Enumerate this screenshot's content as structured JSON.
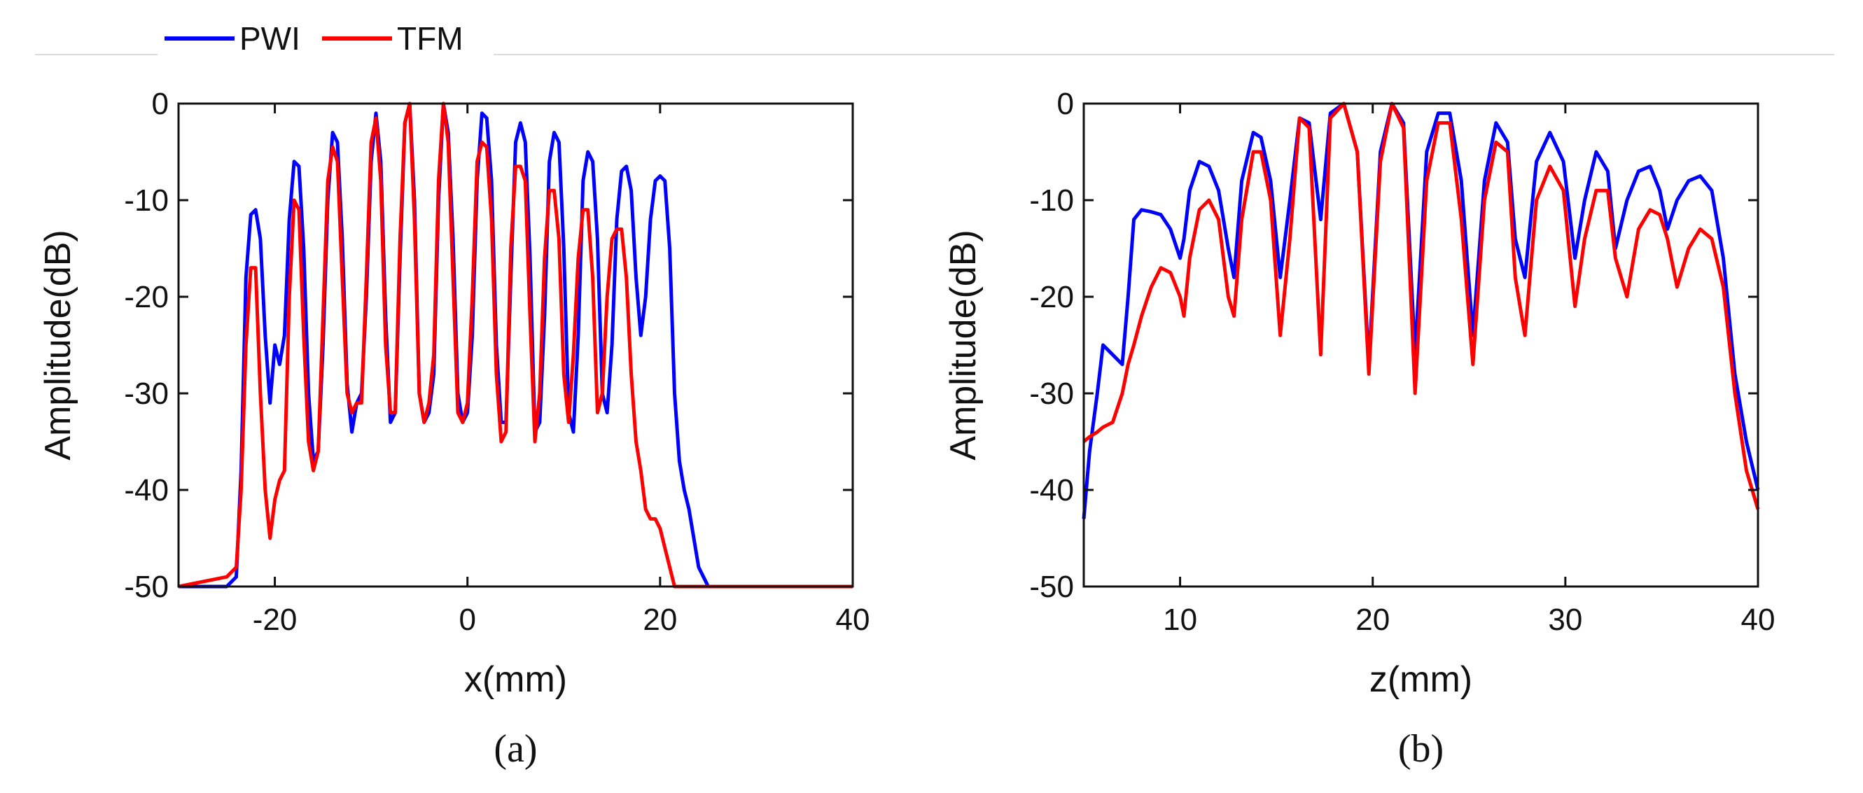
{
  "legend": {
    "entries": [
      {
        "label": "PWI",
        "color": "#0000ff"
      },
      {
        "label": "TFM",
        "color": "#ff0000"
      }
    ]
  },
  "chart_data": [
    {
      "type": "line",
      "caption": "(a)",
      "xlabel": "x(mm)",
      "ylabel": "Amplitude(dB)",
      "xlim": [
        -30,
        40
      ],
      "ylim": [
        -50,
        0
      ],
      "xticks": [
        -20,
        0,
        20,
        40
      ],
      "xtick_labels": [
        "-20",
        "0",
        "20",
        "40"
      ],
      "yticks": [
        0,
        -10,
        -20,
        -30,
        -40,
        -50
      ],
      "ytick_labels": [
        "0",
        "-10",
        "-20",
        "-30",
        "-40",
        "-50"
      ],
      "grid": false,
      "series": [
        {
          "name": "PWI",
          "color": "#0000ff",
          "x": [
            -30,
            -25,
            -24,
            -23.5,
            -23,
            -22.5,
            -22,
            -21.5,
            -21,
            -20.5,
            -20,
            -19.5,
            -19,
            -18.5,
            -18,
            -17.5,
            -17,
            -16.5,
            -16,
            -15.5,
            -15,
            -14.5,
            -14,
            -13.5,
            -13,
            -12.5,
            -12,
            -11.5,
            -11,
            -10.5,
            -10,
            -9.5,
            -9,
            -8.5,
            -8,
            -7.5,
            -7,
            -6.5,
            -6,
            -5.5,
            -5,
            -4.5,
            -4,
            -3.5,
            -3,
            -2.5,
            -2,
            -1.5,
            -1,
            -0.5,
            0,
            0.5,
            1,
            1.5,
            2,
            2.5,
            3,
            3.5,
            4,
            4.5,
            5,
            5.5,
            6,
            6.5,
            7,
            7.5,
            8,
            8.5,
            9,
            9.5,
            10,
            10.5,
            11,
            11.5,
            12,
            12.5,
            13,
            13.5,
            14,
            14.5,
            15,
            15.5,
            16,
            16.5,
            17,
            17.5,
            18,
            18.5,
            19,
            19.5,
            20,
            20.5,
            21,
            21.5,
            22,
            22.5,
            23,
            23.5,
            24,
            24.5,
            25,
            25.5,
            26,
            26.5,
            27,
            27.5,
            28,
            28.5,
            29,
            29.5,
            30,
            30.5,
            31,
            31.5,
            32,
            32.5,
            33,
            33.5,
            34,
            34.5,
            35,
            35.5,
            36,
            36.5,
            37,
            37.5,
            38,
            38.5,
            39,
            39.5,
            40
          ],
          "y": [
            -50,
            -50,
            -49,
            -38,
            -18,
            -11.5,
            -11,
            -14,
            -24,
            -31,
            -25,
            -27,
            -24,
            -12,
            -6,
            -6.5,
            -15,
            -30,
            -37,
            -36,
            -25,
            -10,
            -3,
            -4,
            -14,
            -29,
            -34,
            -31,
            -30,
            -20,
            -6,
            -1,
            -6,
            -22,
            -33,
            -32,
            -16,
            -2,
            0,
            -10,
            -30,
            -33,
            -32,
            -28,
            -10,
            0,
            -3,
            -14,
            -30,
            -33,
            -32,
            -24,
            -8,
            -1,
            -1.5,
            -8,
            -25,
            -33,
            -33,
            -18,
            -4,
            -2,
            -4,
            -16,
            -34,
            -33,
            -22,
            -6,
            -3,
            -4,
            -15,
            -32,
            -34,
            -24,
            -8,
            -5,
            -6,
            -14,
            -30,
            -32,
            -25,
            -12,
            -7,
            -6.5,
            -9,
            -18,
            -24,
            -20,
            -12,
            -8,
            -7.5,
            -8,
            -15,
            -30,
            -37,
            -40,
            -42,
            -45,
            -48,
            -49,
            -50,
            -50,
            -50,
            -50,
            -50,
            -50,
            -50,
            -50,
            -50,
            -50,
            -50,
            -50,
            -50,
            -50,
            -50,
            -50,
            -50,
            -50,
            -50,
            -50,
            -50,
            -50,
            -50,
            -50,
            -50,
            -50,
            -50,
            -50,
            -50,
            -50,
            -50
          ]
        },
        {
          "name": "TFM",
          "color": "#ff0000",
          "x": [
            -30,
            -25,
            -24,
            -23.5,
            -23,
            -22.5,
            -22,
            -21.5,
            -21,
            -20.5,
            -20,
            -19.5,
            -19,
            -18.5,
            -18,
            -17.5,
            -17,
            -16.5,
            -16,
            -15.5,
            -15,
            -14.5,
            -14,
            -13.5,
            -13,
            -12.5,
            -12,
            -11.5,
            -11,
            -10.5,
            -10,
            -9.5,
            -9,
            -8.5,
            -8,
            -7.5,
            -7,
            -6.5,
            -6,
            -5.5,
            -5,
            -4.5,
            -4,
            -3.5,
            -3,
            -2.5,
            -2,
            -1.5,
            -1,
            -0.5,
            0,
            0.5,
            1,
            1.5,
            2,
            2.5,
            3,
            3.5,
            4,
            4.5,
            5,
            5.5,
            6,
            6.5,
            7,
            7.5,
            8,
            8.5,
            9,
            9.5,
            10,
            10.5,
            11,
            11.5,
            12,
            12.5,
            13,
            13.5,
            14,
            14.5,
            15,
            15.5,
            16,
            16.5,
            17,
            17.5,
            18,
            18.5,
            19,
            19.5,
            20,
            20.5,
            21,
            21.5,
            22,
            22.5,
            23,
            23.5,
            24,
            24.5,
            25,
            25.5,
            26,
            26.5,
            27,
            27.5,
            28,
            28.5,
            29,
            29.5,
            30,
            30.5,
            31,
            31.5,
            32,
            32.5,
            33,
            33.5,
            34,
            34.5,
            35,
            35.5,
            36,
            36.5,
            37,
            37.5,
            38,
            38.5,
            39,
            39.5,
            40
          ],
          "y": [
            -50,
            -49,
            -48,
            -40,
            -25,
            -17,
            -17,
            -30,
            -40,
            -45,
            -41,
            -39,
            -38,
            -20,
            -10,
            -11,
            -24,
            -35,
            -38,
            -36,
            -22,
            -8,
            -4.5,
            -6,
            -18,
            -30,
            -32,
            -31,
            -31,
            -18,
            -4,
            -1.5,
            -8,
            -25,
            -32,
            -32,
            -14,
            -2,
            0,
            -12,
            -30,
            -33,
            -31,
            -26,
            -8,
            0,
            -4,
            -18,
            -32,
            -33,
            -31,
            -20,
            -6,
            -4,
            -4.5,
            -12,
            -28,
            -35,
            -34,
            -15,
            -6.5,
            -6.5,
            -8,
            -22,
            -35,
            -30,
            -16,
            -9,
            -9,
            -14,
            -28,
            -33,
            -26,
            -16,
            -11,
            -11,
            -18,
            -32,
            -30,
            -20,
            -14,
            -13,
            -13,
            -18,
            -28,
            -35,
            -38,
            -42,
            -43,
            -43,
            -44,
            -46,
            -48,
            -50,
            -50,
            -50,
            -50,
            -50,
            -50,
            -50,
            -50,
            -50,
            -50,
            -50,
            -50,
            -50,
            -50,
            -50,
            -50,
            -50,
            -50,
            -50,
            -50,
            -50,
            -50,
            -50,
            -50,
            -50,
            -50,
            -50,
            -50,
            -50,
            -50,
            -50,
            -50,
            -50,
            -50,
            -50,
            -50,
            -50,
            -50
          ]
        }
      ]
    },
    {
      "type": "line",
      "caption": "(b)",
      "xlabel": "z(mm)",
      "ylabel": "Amplitude(dB)",
      "xlim": [
        5,
        40
      ],
      "ylim": [
        -50,
        0
      ],
      "xticks": [
        10,
        20,
        30,
        40
      ],
      "xtick_labels": [
        "10",
        "20",
        "30",
        "40"
      ],
      "yticks": [
        0,
        -10,
        -20,
        -30,
        -40,
        -50
      ],
      "ytick_labels": [
        "0",
        "-10",
        "-20",
        "-30",
        "-40",
        "-50"
      ],
      "grid": false,
      "series": [
        {
          "name": "PWI",
          "color": "#0000ff",
          "x": [
            5,
            5.3,
            5.7,
            6,
            6.5,
            7,
            7.3,
            7.6,
            8,
            8.5,
            9,
            9.5,
            10,
            10.2,
            10.5,
            11,
            11.5,
            12,
            12.5,
            12.8,
            13.2,
            13.8,
            14.2,
            14.7,
            15.2,
            15.7,
            16.2,
            16.7,
            17.3,
            17.8,
            18.5,
            19.2,
            19.8,
            20.4,
            21,
            21.6,
            22.2,
            22.8,
            23.4,
            24,
            24.6,
            25.2,
            25.8,
            26.4,
            27,
            27.4,
            27.9,
            28.5,
            29.2,
            29.9,
            30.5,
            31,
            31.6,
            32.2,
            32.6,
            33.2,
            33.8,
            34.4,
            34.9,
            35.3,
            35.8,
            36.4,
            37,
            37.6,
            38.2,
            38.8,
            39.4,
            40
          ],
          "y": [
            -43,
            -36,
            -30,
            -25,
            -26,
            -27,
            -20,
            -12,
            -11,
            -11.2,
            -11.5,
            -13,
            -16,
            -14,
            -9,
            -6,
            -6.5,
            -9,
            -15,
            -18,
            -8,
            -3,
            -3.5,
            -8,
            -18,
            -10,
            -1.5,
            -2,
            -12,
            -1,
            0,
            -5,
            -27,
            -5,
            0,
            -2,
            -26,
            -5,
            -1,
            -1,
            -8,
            -24,
            -8,
            -2,
            -4,
            -14,
            -18,
            -6,
            -3,
            -6,
            -16,
            -10,
            -5,
            -7,
            -15,
            -10,
            -7,
            -6.5,
            -9,
            -13,
            -10,
            -8,
            -7.5,
            -9,
            -16,
            -28,
            -35,
            -40
          ]
        },
        {
          "name": "TFM",
          "color": "#ff0000",
          "x": [
            5,
            5.3,
            5.7,
            6,
            6.5,
            7,
            7.3,
            7.6,
            8,
            8.5,
            9,
            9.5,
            10,
            10.2,
            10.5,
            11,
            11.5,
            12,
            12.5,
            12.8,
            13.2,
            13.8,
            14.2,
            14.7,
            15.2,
            15.7,
            16.2,
            16.7,
            17.3,
            17.8,
            18.5,
            19.2,
            19.8,
            20.4,
            21,
            21.6,
            22.2,
            22.8,
            23.4,
            24,
            24.6,
            25.2,
            25.8,
            26.4,
            27,
            27.4,
            27.9,
            28.5,
            29.2,
            29.9,
            30.5,
            31,
            31.6,
            32.2,
            32.6,
            33.2,
            33.8,
            34.4,
            34.9,
            35.3,
            35.8,
            36.4,
            37,
            37.6,
            38.2,
            38.8,
            39.4,
            40
          ],
          "y": [
            -35,
            -34.5,
            -34,
            -33.5,
            -33,
            -30,
            -27,
            -25,
            -22,
            -19,
            -17,
            -17.5,
            -20,
            -22,
            -16,
            -11,
            -10,
            -12,
            -20,
            -22,
            -12,
            -5,
            -5,
            -10,
            -24,
            -14,
            -1.5,
            -2.5,
            -26,
            -1.5,
            0,
            -5,
            -28,
            -6,
            0,
            -2.5,
            -30,
            -8,
            -2,
            -2,
            -12,
            -27,
            -10,
            -4,
            -5,
            -18,
            -24,
            -10,
            -6.5,
            -9,
            -21,
            -14,
            -9,
            -9,
            -16,
            -20,
            -13,
            -11,
            -11.5,
            -14,
            -19,
            -15,
            -13,
            -14,
            -19,
            -30,
            -38,
            -42
          ]
        }
      ]
    }
  ]
}
